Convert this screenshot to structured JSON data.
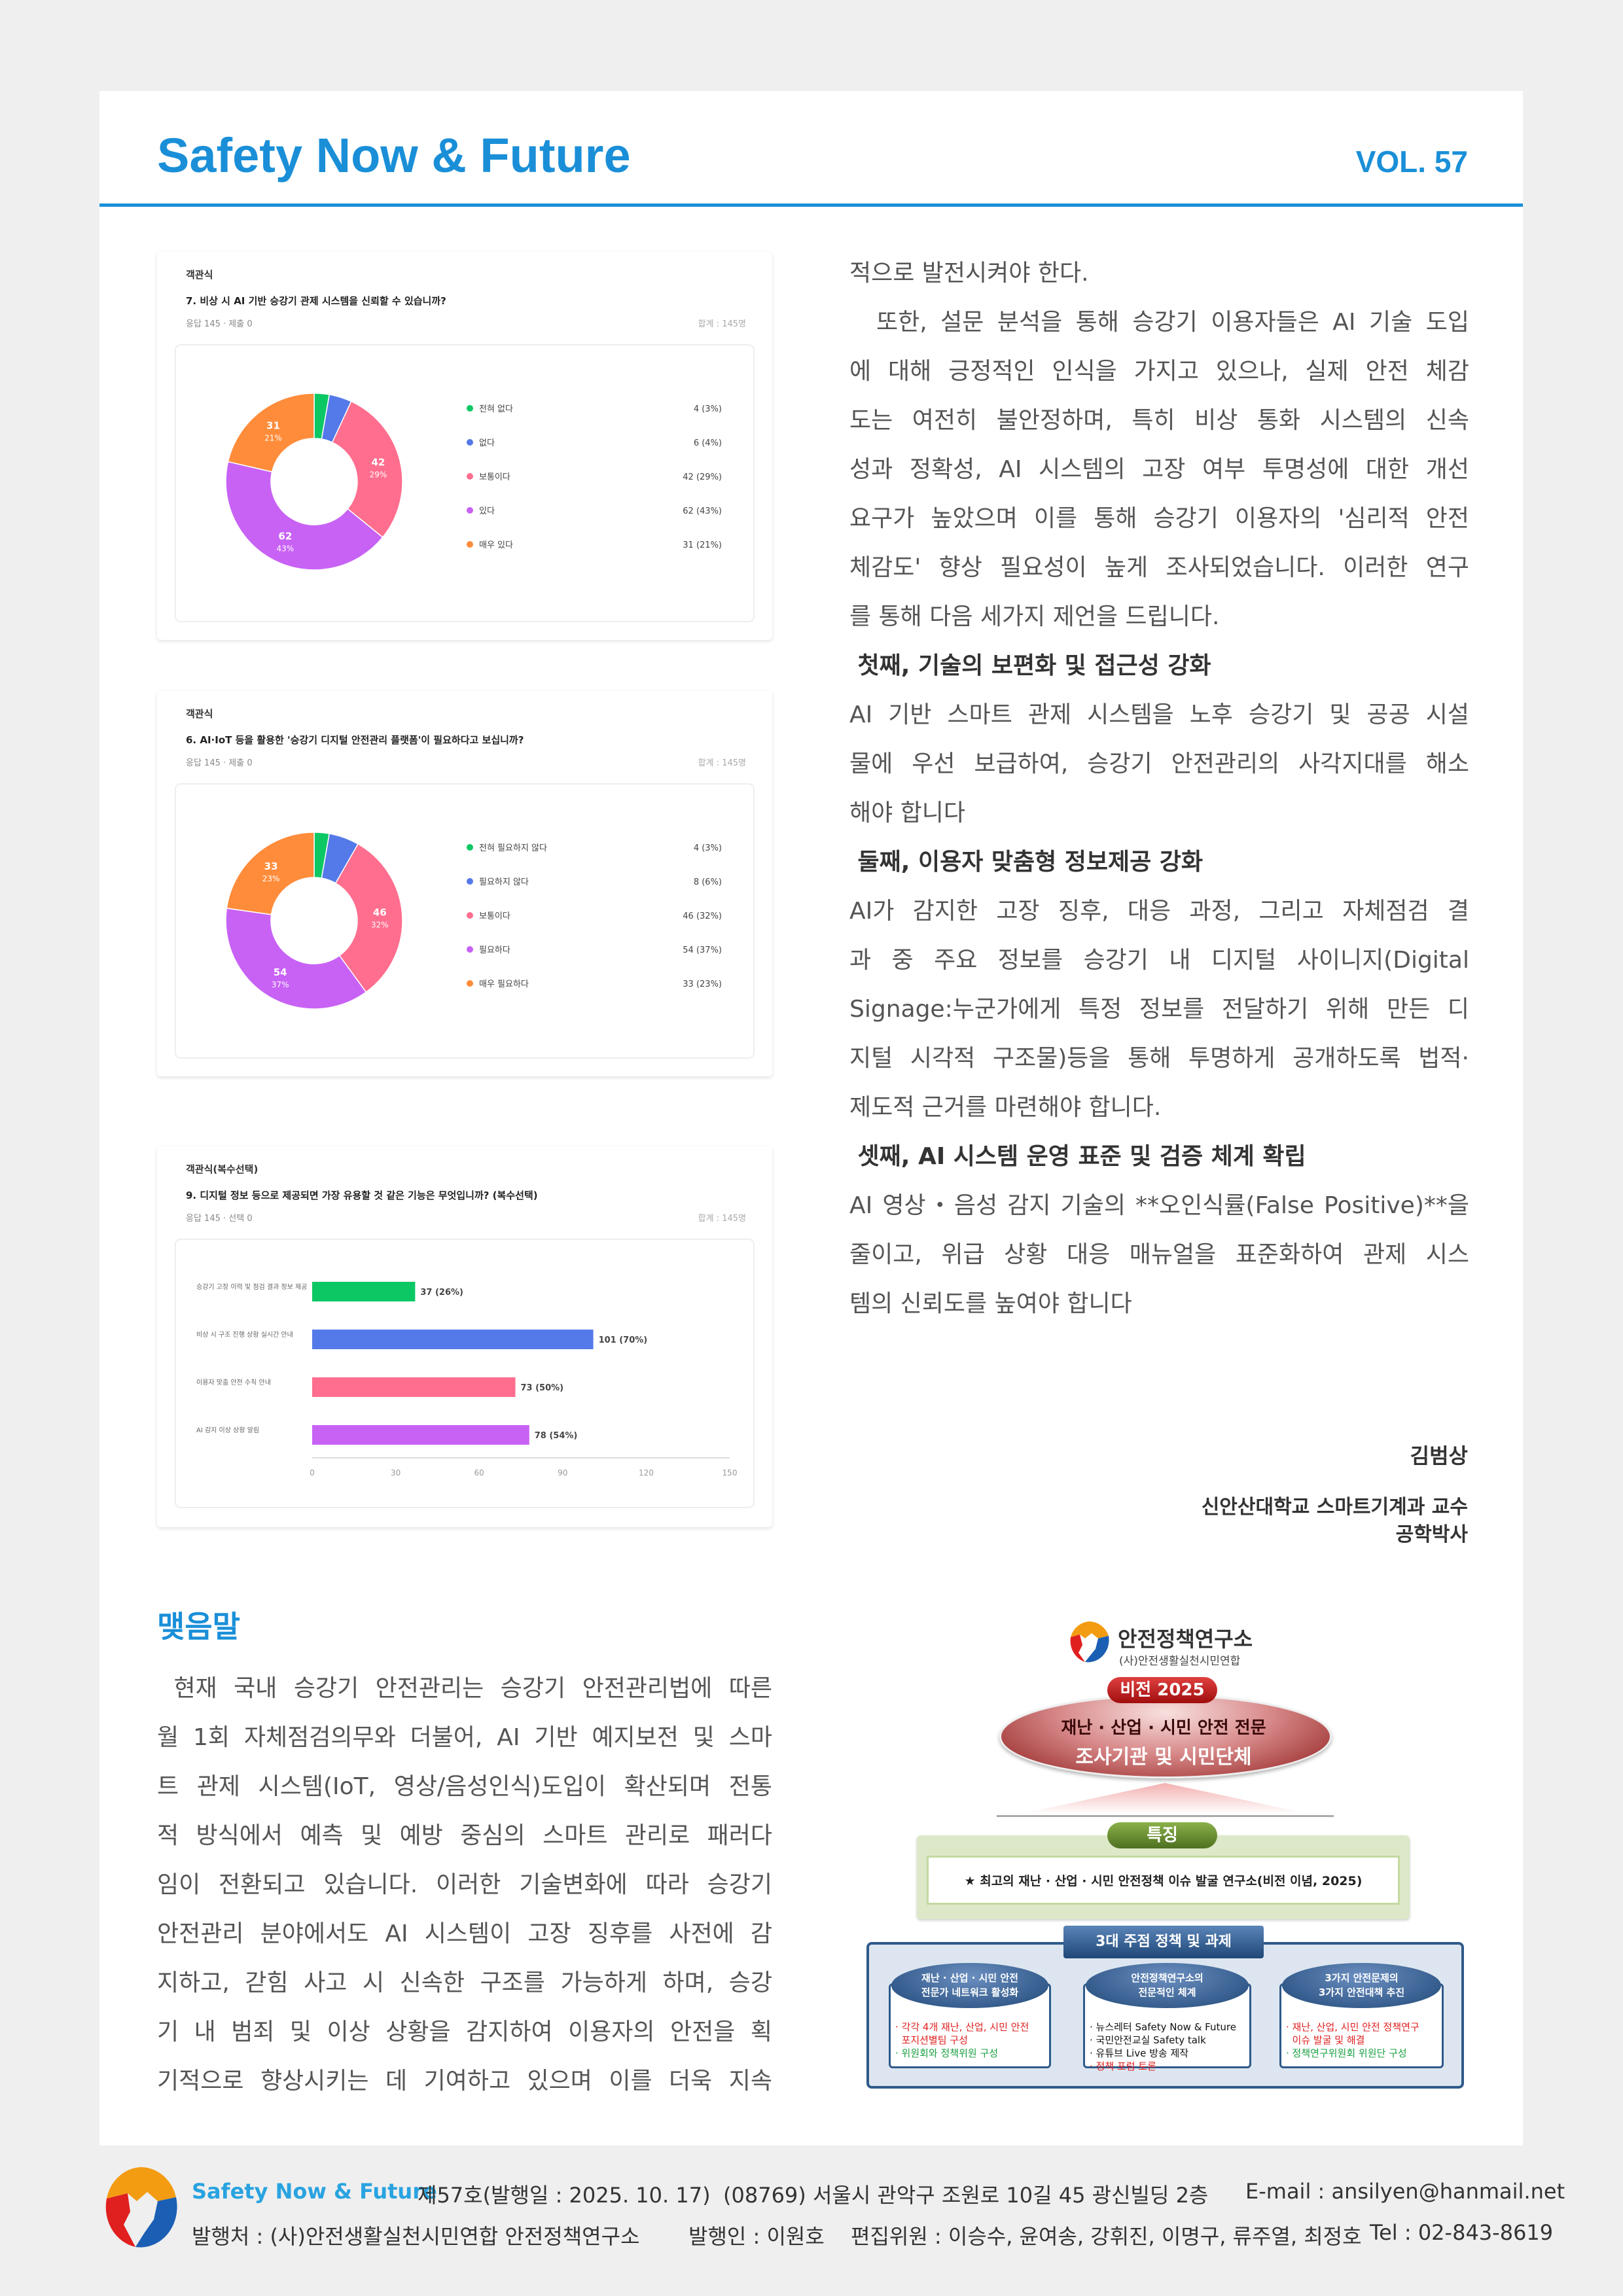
{
  "header": {
    "title": "Safety Now & Future",
    "volume": "VOL. 57"
  },
  "colors": {
    "accent": "#1a8fd8",
    "green": "#0cc864",
    "blue": "#5479e8",
    "pink": "#ff6e8e",
    "purple": "#c862f5",
    "orange": "#ff8c3a"
  },
  "chart_data": [
    {
      "type": "pie",
      "donut": true,
      "kind": "객관식",
      "title": "7. 비상 시 AI 기반 승강기 관제 시스템을 신뢰할 수 있습니까?",
      "meta": "응답 145 · 제출 0",
      "meta_right": "합계 : 145명",
      "categories": [
        "전혀 없다",
        "없다",
        "보통이다",
        "있다",
        "매우 있다"
      ],
      "values": [
        4,
        6,
        42,
        62,
        31
      ],
      "percent_labels": [
        "3%",
        "4%",
        "29%",
        "43%",
        "21%"
      ]
    },
    {
      "type": "pie",
      "donut": true,
      "kind": "객관식",
      "title": "6. AI·IoT 등을 활용한 '승강기 디지털 안전관리 플랫폼'이 필요하다고 보십니까?",
      "meta": "응답 145 · 제출 0",
      "meta_right": "합계 : 145명",
      "categories": [
        "전혀 필요하지 않다",
        "필요하지 않다",
        "보통이다",
        "필요하다",
        "매우 필요하다"
      ],
      "values": [
        4,
        8,
        46,
        54,
        33
      ],
      "percent_labels": [
        "3%",
        "6%",
        "32%",
        "37%",
        "23%"
      ]
    },
    {
      "type": "bar",
      "orientation": "horizontal",
      "kind": "객관식(복수선택)",
      "title": "9. 디지털 정보 등으로 제공되면 가장 유용할 것 같은 기능은 무엇입니까? (복수선택)",
      "meta": "응답 145 · 선택 0",
      "meta_right": "합계 : 145명",
      "categories": [
        "승강기 고장 이력 및 점검 결과 정보 제공",
        "비상 시 구조 진행 상황 실시간 안내",
        "이용자 맞춤 안전 수칙 안내",
        "AI 감지 이상 상황 알림"
      ],
      "values": [
        37,
        101,
        73,
        78
      ],
      "percent_labels": [
        "26%",
        "70%",
        "50%",
        "54%"
      ],
      "xlim": [
        0,
        150
      ],
      "xticks": [
        0,
        30,
        60,
        90,
        120,
        150
      ]
    }
  ],
  "right_column": {
    "lines": [
      {
        "t": "적으로 발전시켜야 한다.",
        "s": "last"
      },
      {
        "t": "  또한, 설문 분석을 통해 승강기 이용자들은 AI 기술 도입",
        "s": ""
      },
      {
        "t": "에 대해 긍정적인 인식을 가지고 있으나, 실제 안전 체감",
        "s": ""
      },
      {
        "t": "도는 여전히 불안정하며, 특히 비상 통화 시스템의 신속",
        "s": ""
      },
      {
        "t": "성과 정확성, AI 시스템의 고장 여부 투명성에 대한 개선",
        "s": ""
      },
      {
        "t": "요구가 높았으며 이를 통해 승강기 이용자의 '심리적 안전",
        "s": ""
      },
      {
        "t": "체감도' 향상 필요성이 높게 조사되었습니다. 이러한 연구",
        "s": ""
      },
      {
        "t": "를 통해 다음 세가지 제언을 드립니다.",
        "s": "last"
      },
      {
        "t": " 첫째, 기술의 보편화 및 접근성 강화",
        "s": "bold"
      },
      {
        "t": "AI 기반 스마트 관제 시스템을 노후 승강기 및 공공 시설",
        "s": ""
      },
      {
        "t": "물에 우선 보급하여, 승강기 안전관리의 사각지대를 해소",
        "s": ""
      },
      {
        "t": "해야 합니다",
        "s": "last"
      },
      {
        "t": " 둘째, 이용자 맞춤형 정보제공 강화",
        "s": "bold"
      },
      {
        "t": "AI가 감지한 고장 징후, 대응 과정, 그리고 자체점검 결",
        "s": ""
      },
      {
        "t": "과 중 주요 정보를 승강기 내 디지털 사이니지(Digital",
        "s": ""
      },
      {
        "t": "Signage:누군가에게 특정 정보를 전달하기 위해 만든 디",
        "s": ""
      },
      {
        "t": "지털 시각적 구조물)등을 통해 투명하게 공개하도록 법적·",
        "s": ""
      },
      {
        "t": "제도적 근거를 마련해야 합니다.",
        "s": "last"
      },
      {
        "t": " 셋째, AI 시스템 운영 표준 및 검증 체계 확립",
        "s": "bold"
      },
      {
        "t": "AI 영상・음성 감지 기술의 **오인식률(False Positive)**을",
        "s": ""
      },
      {
        "t": "줄이고, 위급 상황 대응 매뉴얼을 표준화하여 관제 시스",
        "s": ""
      },
      {
        "t": "템의 신뢰도를 높여야 합니다",
        "s": "last"
      }
    ]
  },
  "author": {
    "name": "김범상",
    "affiliation": "신안산대학교 스마트기계과 교수",
    "degree": "공학박사"
  },
  "closing": {
    "heading": "맺음말",
    "lines": [
      " 현재 국내 승강기 안전관리는 승강기 안전관리법에 따른",
      "월 1회 자체점검의무와 더불어, AI 기반 예지보전 및 스마",
      "트 관제 시스템(IoT, 영상/음성인식)도입이 확산되며 전통",
      "적 방식에서 예측 및 예방 중심의 스마트 관리로 패러다",
      "임이 전환되고 있습니다. 이러한 기술변화에 따라 승강기",
      "안전관리 분야에서도 AI 시스템이 고장 징후를 사전에 감",
      "지하고, 갇힘 사고 시 신속한 구조를 가능하게 하며, 승강",
      "기 내 범죄 및 이상 상황을 감지하여 이용자의 안전을 획",
      "기적으로 향상시키는 데 기여하고 있으며 이를 더욱 지속"
    ]
  },
  "diagram": {
    "org_name": "안전정책연구소",
    "org_sub": "(사)안전생활실천시민연합",
    "vision_label": "비전 2025",
    "vision_line1": "재난 · 산업 · 시민 안전 전문",
    "vision_line2": "조사기관 및 시민단체",
    "feature_label": "특징",
    "feature_text": "★ 최고의 재난 · 산업 · 시민 안전정책 이슈 발굴 연구소(비전 이념, 2025)",
    "tasks_label": "3대 주점 정책 및 과제",
    "columns": [
      {
        "title1": "재난 · 산업 · 시민 안전",
        "title2": "전문가 네트워크 활성화",
        "bullets": [
          {
            "t": "· 각각 4개 재난, 산업, 시민 안전",
            "c": "red"
          },
          {
            "t": "  포지션별팀 구성",
            "c": "red"
          },
          {
            "t": "· 위원회와 정책위원 구성",
            "c": "green"
          }
        ]
      },
      {
        "title1": "안전정책연구소의",
        "title2": "전문적인 체계",
        "bullets": [
          {
            "t": "· 뉴스레터 Safety Now & Future",
            "c": "black"
          },
          {
            "t": "· 국민안전교실 Safety talk",
            "c": "black"
          },
          {
            "t": "· 유튜브 Live 방송 제작",
            "c": "black"
          },
          {
            "t": "· 정책 포럼 토론",
            "c": "red"
          }
        ]
      },
      {
        "title1": "3가지 안전문제의",
        "title2": "3가지 안전대책 추진",
        "bullets": [
          {
            "t": "· 재난, 산업, 시민 안전 정책연구",
            "c": "red"
          },
          {
            "t": "  이슈 발굴 및 해결",
            "c": "red"
          },
          {
            "t": "· 정책연구위원회 위원단 구성",
            "c": "green"
          }
        ]
      }
    ]
  },
  "footer": {
    "brand": "Safety Now & Future",
    "issue": "제57호(발행일 : 2025. 10. 17)",
    "address": "(08769) 서울시 관악구 조원로 10길 45 광신빌딩 2층",
    "email": "E-mail : ansilyen@hanmail.net",
    "publisher_org": "발행처 : (사)안전생활실천시민연합 안전정책연구소",
    "publisher": "발행인 : 이원호",
    "editors": "편집위원 : 이승수, 윤여송, 강휘진, 이명구, 류주열, 최정호",
    "tel": "Tel : 02-843-8619"
  }
}
